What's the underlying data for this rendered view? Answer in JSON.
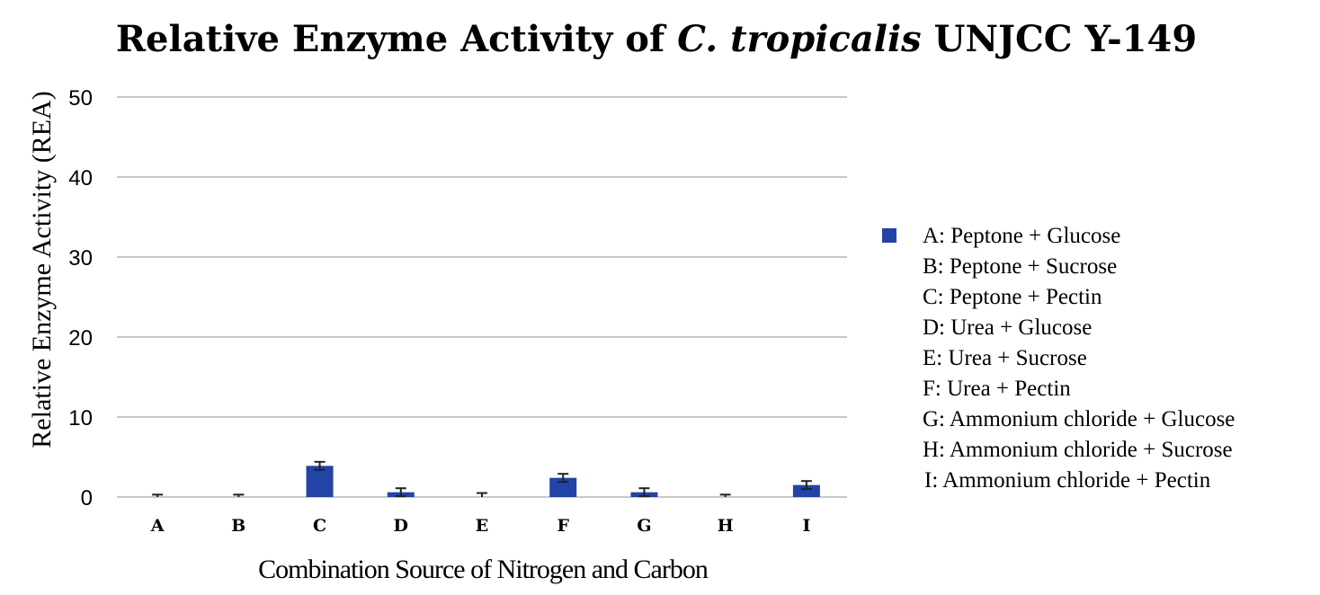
{
  "chart_data": {
    "type": "bar",
    "title_parts": [
      {
        "text": "Relative Enzyme Activity of "
      },
      {
        "text": "C. tropicalis",
        "italic": true
      },
      {
        "text": " UNJCC Y-149"
      }
    ],
    "xlabel": "Combination Source of Nitrogen and Carbon",
    "ylabel": "Relative Enzyme Activity (REA)",
    "ylim": [
      0,
      50
    ],
    "yticks": [
      0,
      10,
      20,
      30,
      40,
      50
    ],
    "categories": [
      "A",
      "B",
      "C",
      "D",
      "E",
      "F",
      "G",
      "H",
      "I"
    ],
    "series": [
      {
        "name": "A: Peptone + Glucose",
        "color": "#2144a6",
        "values": [
          0,
          0,
          3.9,
          0.6,
          0,
          2.4,
          0.6,
          0,
          1.5
        ],
        "errors": [
          0.3,
          0.3,
          0.5,
          0.5,
          0.5,
          0.5,
          0.5,
          0.3,
          0.5
        ]
      }
    ],
    "grid": true,
    "legend_position": "right",
    "legend_entries": [
      "A: Peptone + Glucose",
      "B: Peptone + Sucrose",
      "C: Peptone + Pectin",
      "D: Urea + Glucose",
      "E: Urea + Sucrose",
      "F: Urea + Pectin",
      "G: Ammonium chloride + Glucose",
      "H: Ammonium chloride + Sucrose",
      "I: Ammonium chloride + Pectin"
    ]
  }
}
